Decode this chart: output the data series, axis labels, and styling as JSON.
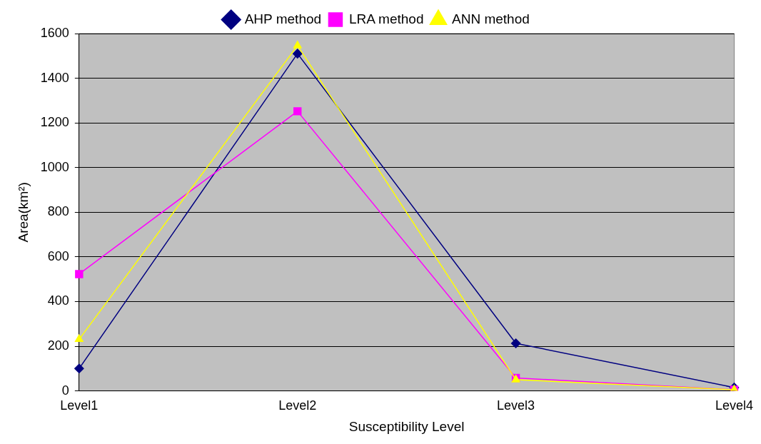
{
  "chart_data": {
    "type": "line",
    "xlabel": "Susceptibility Level",
    "ylabel": "Area(km²)",
    "categories": [
      "Level1",
      "Level2",
      "Level3",
      "Level4"
    ],
    "series": [
      {
        "name": "AHP method",
        "color": "#000080",
        "marker": "diamond",
        "values": [
          100,
          1510,
          213,
          15
        ]
      },
      {
        "name": "LRA method",
        "color": "#ff00ff",
        "marker": "square",
        "values": [
          523,
          1252,
          58,
          5
        ]
      },
      {
        "name": "ANN method",
        "color": "#ffff00",
        "marker": "triangle",
        "values": [
          231,
          1546,
          50,
          5
        ]
      }
    ],
    "ylim": [
      0,
      1600
    ],
    "yticks": [
      0,
      200,
      400,
      600,
      800,
      1000,
      1200,
      1400,
      1600
    ],
    "grid": "y",
    "legend": "top"
  }
}
